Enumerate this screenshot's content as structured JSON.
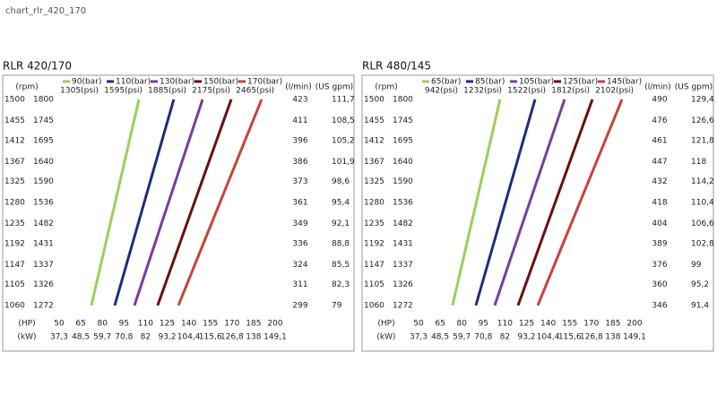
{
  "page_title": "chart_rlr_420_170",
  "chart_data": [
    {
      "type": "line",
      "title": "RLR 420/170",
      "rpm_label": "(rpm)",
      "flow_label": "(l/min)",
      "gpm_label": "(US gpm)",
      "xlabel": "(HP)",
      "kw_label": "(kW)",
      "xlim": [
        50,
        200
      ],
      "xticks": [
        50,
        65,
        80,
        95,
        110,
        125,
        140,
        155,
        170,
        185,
        200
      ],
      "kw_labels": [
        "37,3",
        "48,5",
        "59,7",
        "70,8",
        "82",
        "93,2",
        "104,4",
        "115,6",
        "126,8",
        "138",
        "149,1"
      ],
      "ylim": [
        1060,
        1500
      ],
      "yticks": [
        1500,
        1455,
        1412,
        1367,
        1325,
        1280,
        1235,
        1192,
        1147,
        1105,
        1060
      ],
      "rpm_alt": [
        1800,
        1745,
        1695,
        1640,
        1590,
        1536,
        1482,
        1431,
        1337,
        1326,
        1272
      ],
      "flow": [
        423,
        411,
        396,
        386,
        373,
        361,
        349,
        336,
        324,
        311,
        299
      ],
      "gpm": [
        "111,7",
        "108,5",
        "105,2",
        "101,9",
        "98,6",
        "95,4",
        "92,1",
        "88,8",
        "85,5",
        "82,3",
        "79"
      ],
      "grid": false,
      "series": [
        {
          "name": "90(bar)",
          "psi": "1305(psi)",
          "color": "#9bcf5b",
          "x": [
            72.4,
            105.4
          ],
          "y": [
            1060,
            1500
          ]
        },
        {
          "name": "110(bar)",
          "psi": "1595(psi)",
          "color": "#1f2d7a",
          "x": [
            88.6,
            129.6
          ],
          "y": [
            1060,
            1500
          ]
        },
        {
          "name": "130(bar)",
          "psi": "1885(psi)",
          "color": "#7b3b9c",
          "x": [
            102.3,
            149.6
          ],
          "y": [
            1060,
            1500
          ]
        },
        {
          "name": "150(bar)",
          "psi": "2175(psi)",
          "color": "#6b0f0f",
          "x": [
            118.4,
            169.5
          ],
          "y": [
            1060,
            1500
          ]
        },
        {
          "name": "170(bar)",
          "psi": "2465(psi)",
          "color": "#c8423d",
          "x": [
            132.8,
            190.6
          ],
          "y": [
            1060,
            1500
          ]
        }
      ]
    },
    {
      "type": "line",
      "title": "RLR 480/145",
      "rpm_label": "(rpm)",
      "flow_label": "(l/min)",
      "gpm_label": "(US gpm)",
      "xlabel": "(HP)",
      "kw_label": "(kW)",
      "xlim": [
        50,
        200
      ],
      "xticks": [
        50,
        65,
        80,
        95,
        110,
        125,
        140,
        155,
        170,
        185,
        200
      ],
      "kw_labels": [
        "37,3",
        "48,5",
        "59,7",
        "70,8",
        "82",
        "93,2",
        "104,4",
        "115,6",
        "126,8",
        "138",
        "149,1"
      ],
      "ylim": [
        1060,
        1500
      ],
      "yticks": [
        1500,
        1455,
        1412,
        1367,
        1325,
        1280,
        1235,
        1192,
        1147,
        1105,
        1060
      ],
      "rpm_alt": [
        1800,
        1745,
        1695,
        1640,
        1590,
        1536,
        1482,
        1431,
        1337,
        1326,
        1272
      ],
      "flow": [
        490,
        476,
        461,
        447,
        432,
        418,
        404,
        389,
        376,
        360,
        346
      ],
      "gpm": [
        "129,4",
        "126,6",
        "121,8",
        "118",
        "114,2",
        "110,4",
        "106,6",
        "102,8",
        "99",
        "95,2",
        "91,4"
      ],
      "grid": false,
      "series": [
        {
          "name": "65(bar)",
          "psi": "942(psi)",
          "color": "#9bcf5b",
          "x": [
            73.6,
            106.6
          ],
          "y": [
            1060,
            1500
          ]
        },
        {
          "name": "85(bar)",
          "psi": "1232(psi)",
          "color": "#1f2d7a",
          "x": [
            89.8,
            130.9
          ],
          "y": [
            1060,
            1500
          ]
        },
        {
          "name": "105(bar)",
          "psi": "1522(psi)",
          "color": "#7b3b9c",
          "x": [
            102.9,
            151.4
          ],
          "y": [
            1060,
            1500
          ]
        },
        {
          "name": "125(bar)",
          "psi": "1812(psi)",
          "color": "#6b0f0f",
          "x": [
            119.1,
            170.7
          ],
          "y": [
            1060,
            1500
          ]
        },
        {
          "name": "145(bar)",
          "psi": "2102(psi)",
          "color": "#c8423d",
          "x": [
            132.8,
            191.3
          ],
          "y": [
            1060,
            1500
          ]
        }
      ]
    }
  ]
}
